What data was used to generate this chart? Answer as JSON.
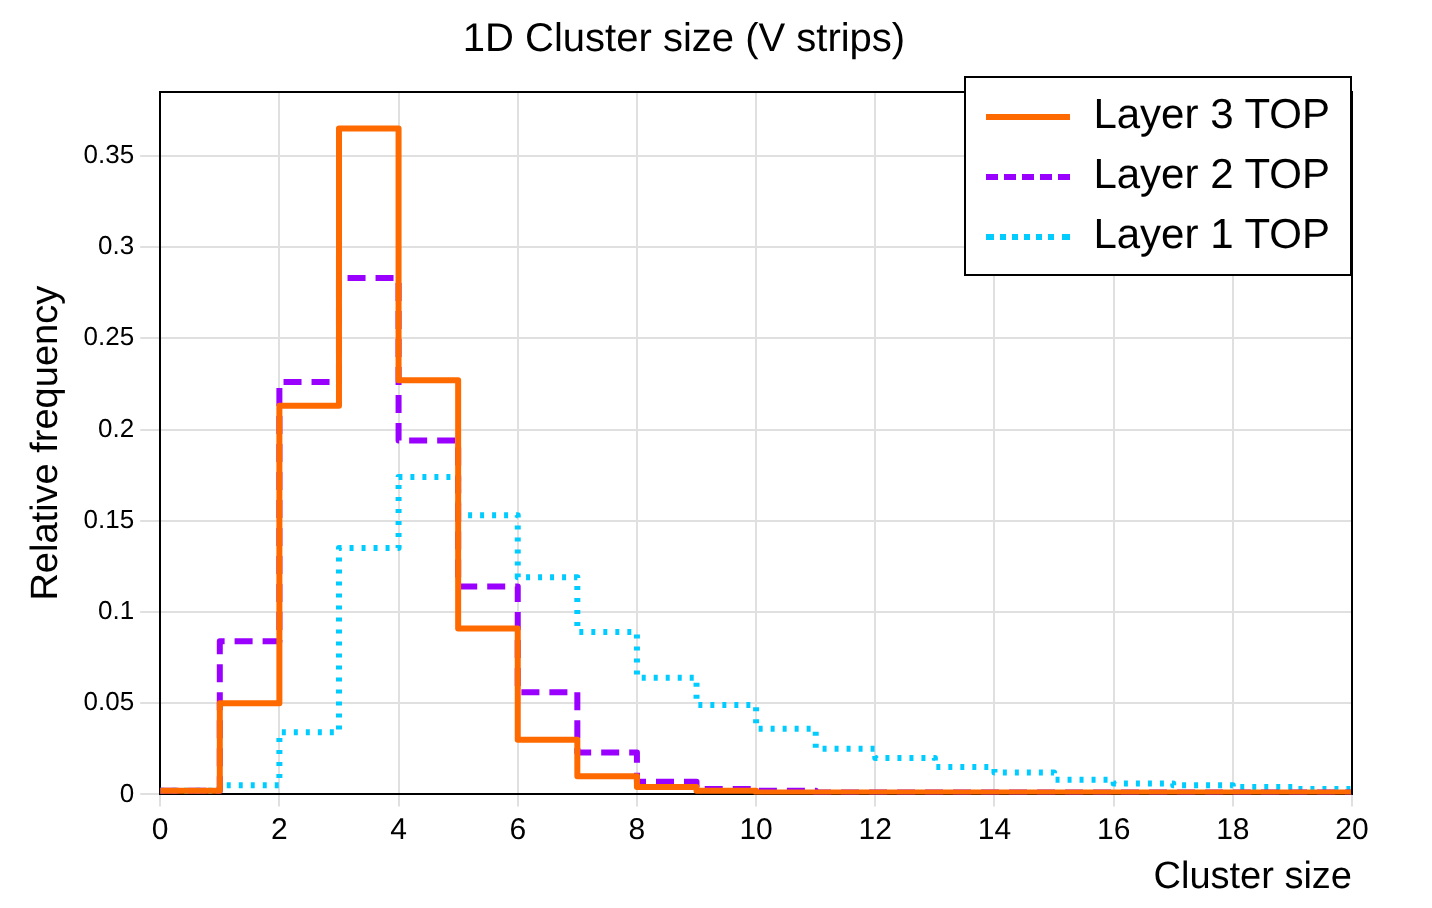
{
  "chart_data": {
    "type": "histogram",
    "title": "1D Cluster size (V strips)",
    "xlabel": "Cluster size",
    "ylabel": "Relative frequency",
    "bins": [
      0,
      1,
      2,
      3,
      4,
      5,
      6,
      7,
      8,
      9,
      10,
      11,
      12,
      13,
      14,
      15,
      16,
      17,
      18,
      19,
      20
    ],
    "series": [
      {
        "name": "Layer 3 TOP",
        "color": "#ff6a00",
        "line_style": "solid",
        "values": [
          0.002,
          0.05,
          0.213,
          0.365,
          0.227,
          0.091,
          0.03,
          0.01,
          0.004,
          0.002,
          0.001,
          0.001,
          0.001,
          0.001,
          0.001,
          0.001,
          0.001,
          0.001,
          0.001,
          0.001
        ]
      },
      {
        "name": "Layer 2 TOP",
        "color": "#9900ff",
        "line_style": "dashed",
        "values": [
          0.002,
          0.084,
          0.226,
          0.283,
          0.194,
          0.114,
          0.056,
          0.023,
          0.007,
          0.003,
          0.002,
          0.001,
          0.001,
          0.001,
          0.001,
          0.001,
          0.001,
          0.001,
          0.001,
          0.001
        ]
      },
      {
        "name": "Layer 1 TOP",
        "color": "#00ccff",
        "line_style": "dotted",
        "values": [
          0.002,
          0.005,
          0.034,
          0.135,
          0.174,
          0.153,
          0.119,
          0.089,
          0.064,
          0.049,
          0.036,
          0.025,
          0.02,
          0.015,
          0.012,
          0.008,
          0.006,
          0.005,
          0.004,
          0.003
        ]
      }
    ],
    "xlim": [
      0,
      20
    ],
    "xticks": [
      0,
      2,
      4,
      6,
      8,
      10,
      12,
      14,
      16,
      18,
      20
    ],
    "ylim": [
      0,
      0.385
    ],
    "yticks": [
      0,
      0.05,
      0.1,
      0.15,
      0.2,
      0.25,
      0.3,
      0.35
    ],
    "grid": true,
    "legend": "top right"
  }
}
